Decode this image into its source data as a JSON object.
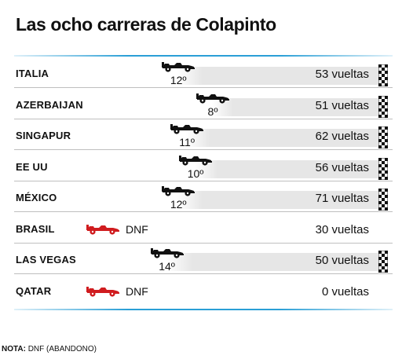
{
  "title": "Las ocho carreras de Colapinto",
  "chart_data": {
    "type": "bar",
    "title": "Las ocho carreras de Colapinto",
    "categories": [
      "ITALIA",
      "AZERBAIJAN",
      "SINGAPUR",
      "EE UU",
      "MÉXICO",
      "BRASIL",
      "LAS VEGAS",
      "QATAR"
    ],
    "series": [
      {
        "values": [
          53,
          51,
          62,
          56,
          71,
          30,
          50,
          0
        ]
      }
    ],
    "races": [
      {
        "race": "ITALIA",
        "result": "12º",
        "finished": true,
        "laps": 53,
        "laps_label": "53 vueltas",
        "car_progress": 0.22
      },
      {
        "race": "AZERBAIJAN",
        "result": "8º",
        "finished": true,
        "laps": 51,
        "laps_label": "51 vueltas",
        "car_progress": 0.46
      },
      {
        "race": "SINGAPUR",
        "result": "11º",
        "finished": true,
        "laps": 62,
        "laps_label": "62 vueltas",
        "car_progress": 0.28
      },
      {
        "race": "EE UU",
        "result": "10º",
        "finished": true,
        "laps": 56,
        "laps_label": "56 vueltas",
        "car_progress": 0.34
      },
      {
        "race": "MÉXICO",
        "result": "12º",
        "finished": true,
        "laps": 71,
        "laps_label": "71 vueltas",
        "car_progress": 0.22
      },
      {
        "race": "BRASIL",
        "result": "DNF",
        "finished": false,
        "laps": 30,
        "laps_label": "30 vueltas"
      },
      {
        "race": "LAS VEGAS",
        "result": "14º",
        "finished": true,
        "laps": 50,
        "laps_label": "50 vueltas",
        "car_progress": 0.14
      },
      {
        "race": "QATAR",
        "result": "DNF",
        "finished": false,
        "laps": 0,
        "laps_label": "0 vueltas"
      }
    ],
    "legend": "none",
    "grid": false
  },
  "note": {
    "label": "NOTA:",
    "text": "DNF (ABANDONO)"
  },
  "colors": {
    "progress": "#e6e6e6",
    "rule_accent": "#2a9fd6",
    "car_finished": "#111111",
    "car_dnf": "#d01c1f",
    "separator": "#bfbfbf"
  },
  "icons": {
    "car": "f1-car-icon",
    "flag": "checkered-flag-icon"
  }
}
